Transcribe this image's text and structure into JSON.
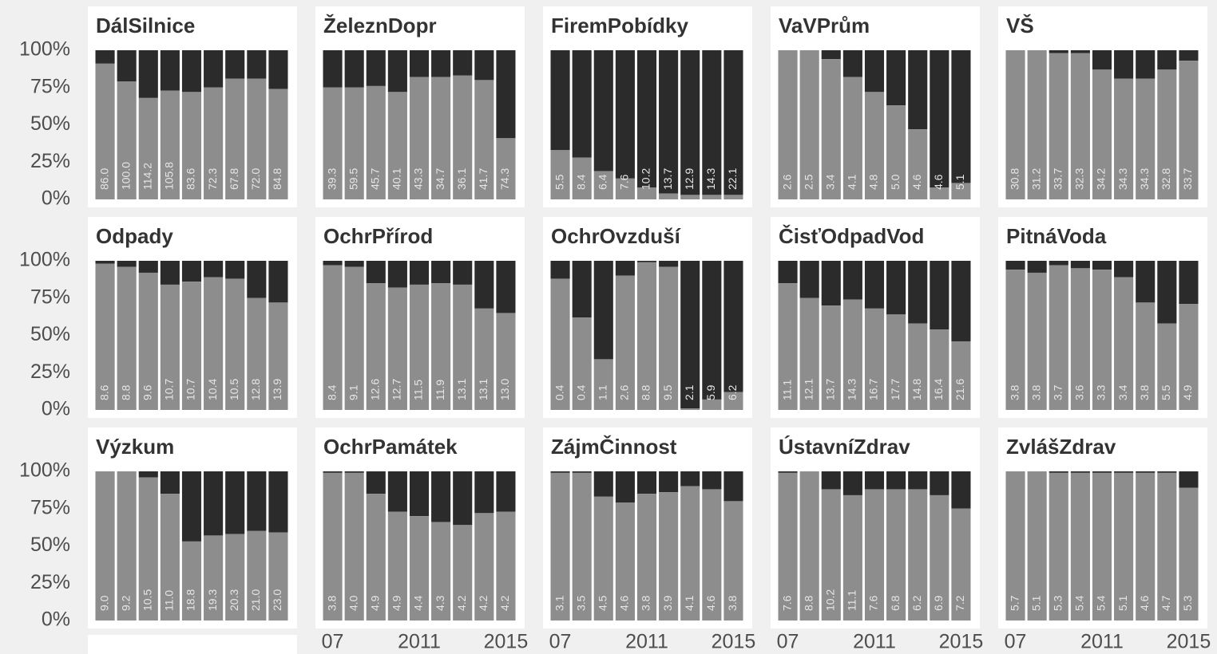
{
  "chart_data": {
    "type": "bar",
    "categories": [
      "07",
      null,
      null,
      null,
      "2011",
      null,
      null,
      null,
      "2015"
    ],
    "ylim": [
      0,
      100
    ],
    "yticks": [
      {
        "value": 0,
        "label": "0%"
      },
      {
        "value": 25,
        "label": "25%"
      },
      {
        "value": 50,
        "label": "50%"
      },
      {
        "value": 75,
        "label": "75%"
      },
      {
        "value": 100,
        "label": "100%"
      }
    ],
    "color": "#8d8d8d",
    "background_color": "#2b2b2b",
    "facets": [
      {
        "title": "DálSilnice",
        "values": [
          91,
          79,
          68,
          73,
          72,
          75,
          81,
          81,
          74
        ],
        "bar_labels": [
          "86.0",
          "100.0",
          "114.2",
          "105.8",
          "83.6",
          "72.3",
          "67.8",
          "72.0",
          "84.8"
        ]
      },
      {
        "title": "ŽeleznDopr",
        "values": [
          75,
          75,
          76,
          72,
          82,
          82,
          83,
          80,
          41
        ],
        "bar_labels": [
          "39.3",
          "59.5",
          "45.7",
          "40.1",
          "43.3",
          "34.7",
          "36.1",
          "41.7",
          "74.3"
        ]
      },
      {
        "title": "FiremPobídky",
        "values": [
          33,
          28,
          19,
          14,
          8,
          4,
          3,
          3,
          3
        ],
        "bar_labels": [
          "5.5",
          "8.4",
          "6.4",
          "7.6",
          "10.2",
          "13.7",
          "12.9",
          "14.3",
          "22.1"
        ]
      },
      {
        "title": "VaVPrům",
        "values": [
          100,
          100,
          94,
          82,
          72,
          63,
          47,
          8,
          11
        ],
        "bar_labels": [
          "2.6",
          "2.5",
          "3.4",
          "4.1",
          "4.8",
          "5.0",
          "4.6",
          "4.6",
          "5.1"
        ]
      },
      {
        "title": "VŠ",
        "values": [
          100,
          100,
          98,
          98,
          87,
          81,
          81,
          87,
          93
        ],
        "bar_labels": [
          "30.8",
          "31.2",
          "33.7",
          "32.3",
          "34.2",
          "34.3",
          "34.3",
          "32.8",
          "33.7"
        ]
      },
      {
        "title": "Odpady",
        "values": [
          98,
          96,
          92,
          84,
          86,
          89,
          88,
          75,
          72
        ],
        "bar_labels": [
          "8.6",
          "8.8",
          "9.6",
          "10.7",
          "10.7",
          "10.4",
          "10.5",
          "12.8",
          "13.9"
        ]
      },
      {
        "title": "OchrPřírod",
        "values": [
          97,
          96,
          85,
          82,
          84,
          85,
          84,
          68,
          65
        ],
        "bar_labels": [
          "8.4",
          "9.1",
          "12.6",
          "12.7",
          "11.5",
          "11.9",
          "13.1",
          "13.1",
          "13.0"
        ]
      },
      {
        "title": "OchrOvzduší",
        "values": [
          88,
          62,
          34,
          90,
          99,
          96,
          1,
          7,
          12
        ],
        "bar_labels": [
          "0.4",
          "0.4",
          "1.1",
          "2.6",
          "8.8",
          "9.5",
          "2.1",
          "5.9",
          "6.2"
        ]
      },
      {
        "title": "ČisťOdpadVod",
        "values": [
          85,
          75,
          70,
          74,
          68,
          64,
          58,
          54,
          46
        ],
        "bar_labels": [
          "11.1",
          "12.1",
          "13.7",
          "14.3",
          "16.7",
          "17.7",
          "14.8",
          "16.4",
          "21.6"
        ]
      },
      {
        "title": "PitnáVoda",
        "values": [
          94,
          92,
          97,
          95,
          94,
          89,
          72,
          58,
          71
        ],
        "bar_labels": [
          "3.8",
          "3.8",
          "3.7",
          "3.6",
          "3.3",
          "3.4",
          "3.8",
          "5.5",
          "4.9"
        ]
      },
      {
        "title": "Výzkum",
        "values": [
          100,
          100,
          96,
          85,
          53,
          57,
          58,
          60,
          59
        ],
        "bar_labels": [
          "9.0",
          "9.2",
          "10.5",
          "11.0",
          "18.8",
          "19.3",
          "20.3",
          "21.0",
          "23.0"
        ]
      },
      {
        "title": "OchrPamátek",
        "values": [
          99,
          99,
          85,
          73,
          70,
          66,
          64,
          72,
          73
        ],
        "bar_labels": [
          "3.8",
          "4.0",
          "4.9",
          "4.9",
          "4.4",
          "4.3",
          "4.2",
          "4.2",
          "4.2"
        ]
      },
      {
        "title": "ZájmČinnost",
        "values": [
          99,
          99,
          83,
          79,
          85,
          86,
          90,
          88,
          80
        ],
        "bar_labels": [
          "3.1",
          "3.5",
          "4.5",
          "4.6",
          "3.8",
          "3.9",
          "4.1",
          "4.6",
          "3.8"
        ]
      },
      {
        "title": "ÚstavníZdrav",
        "values": [
          99,
          100,
          88,
          84,
          88,
          88,
          88,
          84,
          75
        ],
        "bar_labels": [
          "7.6",
          "8.8",
          "10.2",
          "11.1",
          "7.6",
          "6.8",
          "6.2",
          "6.9",
          "7.2"
        ]
      },
      {
        "title": "ZvlášZdrav",
        "values": [
          100,
          100,
          99,
          99,
          99,
          99,
          99,
          99,
          89
        ],
        "bar_labels": [
          "5.7",
          "5.1",
          "5.3",
          "5.4",
          "5.4",
          "5.1",
          "4.6",
          "4.7",
          "5.3"
        ]
      }
    ]
  }
}
